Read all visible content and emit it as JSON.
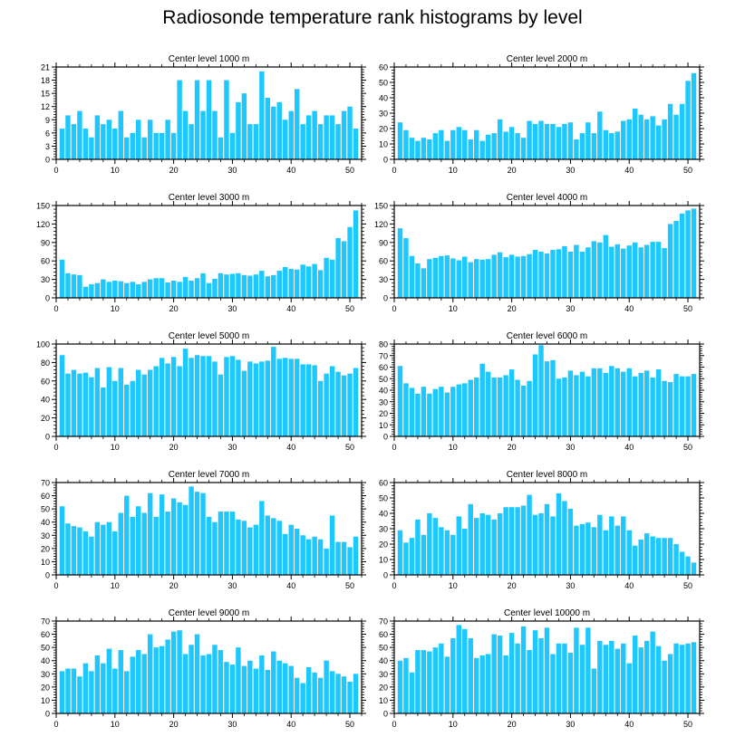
{
  "title": "Radiosonde temperature rank histograms by level",
  "colors": {
    "bar": "#1ec8ff",
    "axis": "#000000"
  },
  "chart_data": [
    {
      "type": "bar",
      "title": "Center level 1000 m",
      "ylim": [
        0,
        21
      ],
      "yticks": [
        0,
        3,
        6,
        9,
        12,
        15,
        18,
        21
      ],
      "xticks": [
        0,
        10,
        20,
        30,
        40,
        50
      ],
      "x": [
        1,
        2,
        3,
        4,
        5,
        6,
        7,
        8,
        9,
        10,
        11,
        12,
        13,
        14,
        15,
        16,
        17,
        18,
        19,
        20,
        21,
        22,
        23,
        24,
        25,
        26,
        27,
        28,
        29,
        30,
        31,
        32,
        33,
        34,
        35,
        36,
        37,
        38,
        39,
        40,
        41,
        42,
        43,
        44,
        45,
        46,
        47,
        48,
        49,
        50,
        51
      ],
      "values": [
        7,
        10,
        8,
        11,
        7,
        5,
        10,
        8,
        9,
        7,
        11,
        5,
        6,
        9,
        5,
        9,
        6,
        6,
        9,
        6,
        18,
        11,
        8,
        18,
        11,
        18,
        11,
        5,
        18,
        6,
        13,
        15,
        8,
        8,
        20,
        14,
        12,
        13,
        9,
        11,
        16,
        8,
        10,
        11,
        8,
        10,
        10,
        8,
        11,
        12,
        7
      ]
    },
    {
      "type": "bar",
      "title": "Center level 2000 m",
      "ylim": [
        0,
        60
      ],
      "yticks": [
        0,
        10,
        20,
        30,
        40,
        50,
        60
      ],
      "xticks": [
        0,
        10,
        20,
        30,
        40,
        50
      ],
      "x": [
        1,
        2,
        3,
        4,
        5,
        6,
        7,
        8,
        9,
        10,
        11,
        12,
        13,
        14,
        15,
        16,
        17,
        18,
        19,
        20,
        21,
        22,
        23,
        24,
        25,
        26,
        27,
        28,
        29,
        30,
        31,
        32,
        33,
        34,
        35,
        36,
        37,
        38,
        39,
        40,
        41,
        42,
        43,
        44,
        45,
        46,
        47,
        48,
        49,
        50,
        51
      ],
      "values": [
        24,
        19,
        14,
        12,
        14,
        13,
        17,
        19,
        12,
        19,
        21,
        19,
        13,
        19,
        12,
        16,
        17,
        26,
        18,
        21,
        17,
        14,
        25,
        23,
        25,
        23,
        23,
        21,
        23,
        24,
        13,
        17,
        24,
        17,
        31,
        19,
        17,
        18,
        25,
        26,
        33,
        29,
        26,
        28,
        22,
        26,
        36,
        29,
        36,
        51,
        56
      ]
    },
    {
      "type": "bar",
      "title": "Center level 3000 m",
      "ylim": [
        0,
        150
      ],
      "yticks": [
        0,
        30,
        60,
        90,
        120,
        150
      ],
      "xticks": [
        0,
        10,
        20,
        30,
        40,
        50
      ],
      "x": [
        1,
        2,
        3,
        4,
        5,
        6,
        7,
        8,
        9,
        10,
        11,
        12,
        13,
        14,
        15,
        16,
        17,
        18,
        19,
        20,
        21,
        22,
        23,
        24,
        25,
        26,
        27,
        28,
        29,
        30,
        31,
        32,
        33,
        34,
        35,
        36,
        37,
        38,
        39,
        40,
        41,
        42,
        43,
        44,
        45,
        46,
        47,
        48,
        49,
        50,
        51
      ],
      "values": [
        62,
        40,
        38,
        37,
        18,
        22,
        24,
        30,
        26,
        28,
        27,
        24,
        26,
        22,
        26,
        30,
        32,
        32,
        25,
        28,
        26,
        34,
        28,
        32,
        40,
        24,
        31,
        40,
        38,
        39,
        40,
        37,
        36,
        38,
        44,
        35,
        37,
        44,
        50,
        47,
        46,
        54,
        51,
        55,
        45,
        65,
        62,
        97,
        92,
        115,
        142
      ]
    },
    {
      "type": "bar",
      "title": "Center level 4000 m",
      "ylim": [
        0,
        150
      ],
      "yticks": [
        0,
        30,
        60,
        90,
        120,
        150
      ],
      "xticks": [
        0,
        10,
        20,
        30,
        40,
        50
      ],
      "x": [
        1,
        2,
        3,
        4,
        5,
        6,
        7,
        8,
        9,
        10,
        11,
        12,
        13,
        14,
        15,
        16,
        17,
        18,
        19,
        20,
        21,
        22,
        23,
        24,
        25,
        26,
        27,
        28,
        29,
        30,
        31,
        32,
        33,
        34,
        35,
        36,
        37,
        38,
        39,
        40,
        41,
        42,
        43,
        44,
        45,
        46,
        47,
        48,
        49,
        50,
        51
      ],
      "values": [
        113,
        97,
        68,
        56,
        48,
        63,
        65,
        68,
        69,
        64,
        61,
        67,
        58,
        63,
        62,
        63,
        70,
        74,
        66,
        70,
        67,
        68,
        71,
        78,
        75,
        72,
        78,
        79,
        84,
        75,
        86,
        75,
        82,
        92,
        90,
        102,
        83,
        87,
        80,
        85,
        90,
        82,
        86,
        91,
        91,
        81,
        120,
        125,
        137,
        142,
        145
      ]
    },
    {
      "type": "bar",
      "title": "Center level 5000 m",
      "ylim": [
        0,
        100
      ],
      "yticks": [
        0,
        20,
        40,
        60,
        80,
        100
      ],
      "xticks": [
        0,
        10,
        20,
        30,
        40,
        50
      ],
      "x": [
        1,
        2,
        3,
        4,
        5,
        6,
        7,
        8,
        9,
        10,
        11,
        12,
        13,
        14,
        15,
        16,
        17,
        18,
        19,
        20,
        21,
        22,
        23,
        24,
        25,
        26,
        27,
        28,
        29,
        30,
        31,
        32,
        33,
        34,
        35,
        36,
        37,
        38,
        39,
        40,
        41,
        42,
        43,
        44,
        45,
        46,
        47,
        48,
        49,
        50,
        51
      ],
      "values": [
        88,
        68,
        72,
        68,
        69,
        64,
        74,
        53,
        75,
        60,
        74,
        56,
        60,
        72,
        67,
        72,
        76,
        85,
        79,
        86,
        76,
        95,
        85,
        88,
        87,
        87,
        81,
        67,
        86,
        87,
        83,
        71,
        81,
        79,
        81,
        82,
        97,
        84,
        85,
        84,
        84,
        78,
        78,
        77,
        60,
        68,
        76,
        70,
        66,
        68,
        74
      ]
    },
    {
      "type": "bar",
      "title": "Center level 6000 m",
      "ylim": [
        0,
        80
      ],
      "yticks": [
        0,
        10,
        20,
        30,
        40,
        50,
        60,
        70,
        80
      ],
      "xticks": [
        0,
        10,
        20,
        30,
        40,
        50
      ],
      "x": [
        1,
        2,
        3,
        4,
        5,
        6,
        7,
        8,
        9,
        10,
        11,
        12,
        13,
        14,
        15,
        16,
        17,
        18,
        19,
        20,
        21,
        22,
        23,
        24,
        25,
        26,
        27,
        28,
        29,
        30,
        31,
        32,
        33,
        34,
        35,
        36,
        37,
        38,
        39,
        40,
        41,
        42,
        43,
        44,
        45,
        46,
        47,
        48,
        49,
        50,
        51
      ],
      "values": [
        61,
        46,
        42,
        37,
        43,
        37,
        41,
        43,
        38,
        43,
        45,
        46,
        49,
        51,
        63,
        56,
        51,
        51,
        53,
        58,
        49,
        44,
        48,
        71,
        79,
        65,
        66,
        50,
        51,
        57,
        53,
        56,
        52,
        59,
        59,
        55,
        61,
        59,
        56,
        59,
        52,
        55,
        57,
        51,
        58,
        48,
        47,
        54,
        52,
        52,
        54
      ]
    },
    {
      "type": "bar",
      "title": "Center level 7000 m",
      "ylim": [
        0,
        70
      ],
      "yticks": [
        0,
        10,
        20,
        30,
        40,
        50,
        60,
        70
      ],
      "xticks": [
        0,
        10,
        20,
        30,
        40,
        50
      ],
      "x": [
        1,
        2,
        3,
        4,
        5,
        6,
        7,
        8,
        9,
        10,
        11,
        12,
        13,
        14,
        15,
        16,
        17,
        18,
        19,
        20,
        21,
        22,
        23,
        24,
        25,
        26,
        27,
        28,
        29,
        30,
        31,
        32,
        33,
        34,
        35,
        36,
        37,
        38,
        39,
        40,
        41,
        42,
        43,
        44,
        45,
        46,
        47,
        48,
        49,
        50,
        51
      ],
      "values": [
        52,
        39,
        37,
        36,
        33,
        29,
        40,
        38,
        40,
        33,
        47,
        60,
        44,
        52,
        47,
        62,
        44,
        61,
        48,
        58,
        55,
        53,
        67,
        63,
        62,
        44,
        40,
        48,
        48,
        48,
        42,
        41,
        36,
        38,
        56,
        45,
        43,
        41,
        31,
        38,
        35,
        30,
        27,
        29,
        27,
        20,
        45,
        25,
        25,
        21,
        29
      ]
    },
    {
      "type": "bar",
      "title": "Center level 8000 m",
      "ylim": [
        0,
        60
      ],
      "yticks": [
        0,
        10,
        20,
        30,
        40,
        50,
        60
      ],
      "xticks": [
        0,
        10,
        20,
        30,
        40,
        50
      ],
      "x": [
        1,
        2,
        3,
        4,
        5,
        6,
        7,
        8,
        9,
        10,
        11,
        12,
        13,
        14,
        15,
        16,
        17,
        18,
        19,
        20,
        21,
        22,
        23,
        24,
        25,
        26,
        27,
        28,
        29,
        30,
        31,
        32,
        33,
        34,
        35,
        36,
        37,
        38,
        39,
        40,
        41,
        42,
        43,
        44,
        45,
        46,
        47,
        48,
        49,
        50,
        51
      ],
      "values": [
        29,
        21,
        24,
        36,
        26,
        40,
        37,
        31,
        29,
        26,
        38,
        30,
        46,
        37,
        40,
        39,
        36,
        40,
        44,
        44,
        44,
        45,
        52,
        39,
        40,
        46,
        38,
        53,
        48,
        43,
        32,
        33,
        34,
        31,
        39,
        29,
        38,
        32,
        38,
        29,
        19,
        23,
        27,
        25,
        24,
        24,
        24,
        20,
        15,
        12,
        8
      ]
    },
    {
      "type": "bar",
      "title": "Center level 9000 m",
      "ylim": [
        0,
        70
      ],
      "yticks": [
        0,
        10,
        20,
        30,
        40,
        50,
        60,
        70
      ],
      "xticks": [
        0,
        10,
        20,
        30,
        40,
        50
      ],
      "x": [
        1,
        2,
        3,
        4,
        5,
        6,
        7,
        8,
        9,
        10,
        11,
        12,
        13,
        14,
        15,
        16,
        17,
        18,
        19,
        20,
        21,
        22,
        23,
        24,
        25,
        26,
        27,
        28,
        29,
        30,
        31,
        32,
        33,
        34,
        35,
        36,
        37,
        38,
        39,
        40,
        41,
        42,
        43,
        44,
        45,
        46,
        47,
        48,
        49,
        50,
        51
      ],
      "values": [
        32,
        34,
        34,
        28,
        38,
        32,
        44,
        38,
        49,
        34,
        48,
        32,
        43,
        48,
        45,
        60,
        50,
        51,
        56,
        62,
        63,
        45,
        52,
        60,
        44,
        45,
        52,
        48,
        39,
        37,
        50,
        36,
        40,
        34,
        44,
        33,
        47,
        40,
        38,
        36,
        27,
        23,
        35,
        31,
        27,
        40,
        32,
        30,
        28,
        24,
        30
      ]
    },
    {
      "type": "bar",
      "title": "Center level 10000 m",
      "ylim": [
        0,
        70
      ],
      "yticks": [
        0,
        10,
        20,
        30,
        40,
        50,
        60,
        70
      ],
      "xticks": [
        0,
        10,
        20,
        30,
        40,
        50
      ],
      "x": [
        1,
        2,
        3,
        4,
        5,
        6,
        7,
        8,
        9,
        10,
        11,
        12,
        13,
        14,
        15,
        16,
        17,
        18,
        19,
        20,
        21,
        22,
        23,
        24,
        25,
        26,
        27,
        28,
        29,
        30,
        31,
        32,
        33,
        34,
        35,
        36,
        37,
        38,
        39,
        40,
        41,
        42,
        43,
        44,
        45,
        46,
        47,
        48,
        49,
        50,
        51
      ],
      "values": [
        40,
        42,
        31,
        48,
        48,
        47,
        50,
        53,
        43,
        57,
        67,
        64,
        57,
        42,
        44,
        45,
        60,
        59,
        44,
        61,
        53,
        66,
        48,
        63,
        57,
        65,
        45,
        53,
        53,
        46,
        65,
        52,
        65,
        34,
        55,
        52,
        55,
        49,
        53,
        38,
        59,
        50,
        55,
        62,
        51,
        40,
        45,
        53,
        52,
        53,
        54
      ]
    }
  ]
}
